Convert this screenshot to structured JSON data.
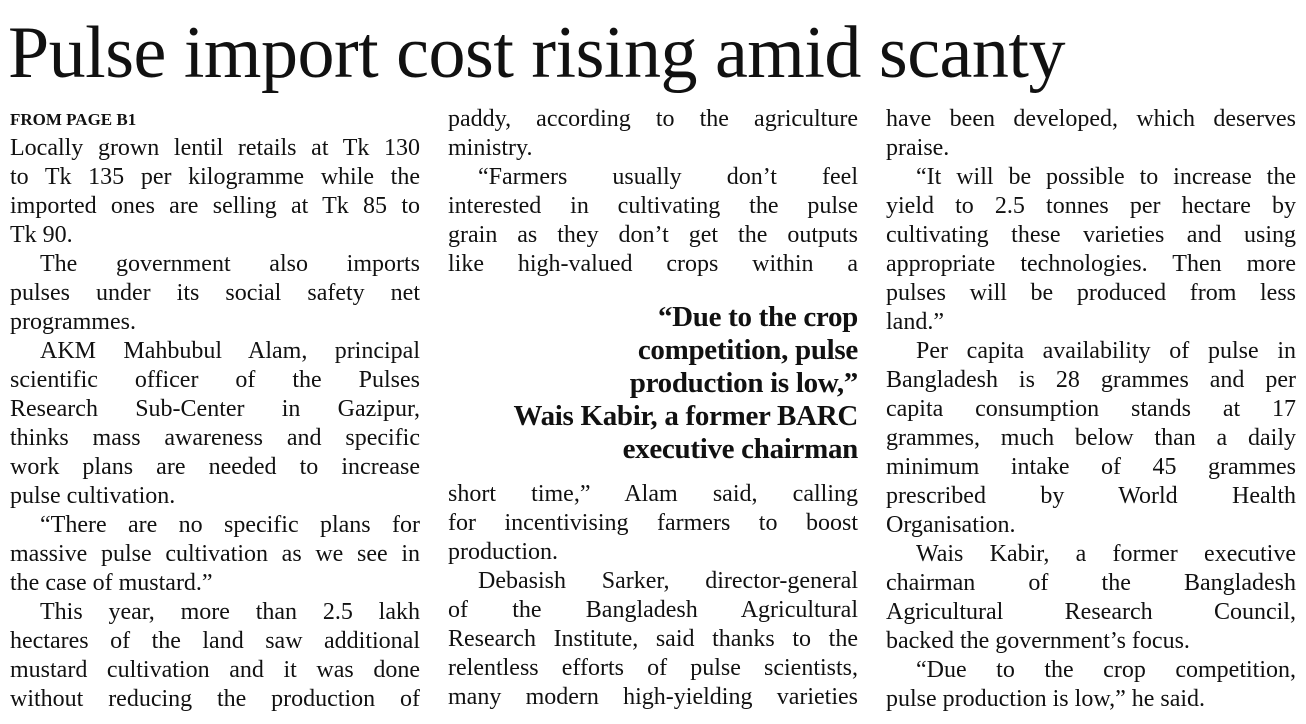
{
  "headline": "Pulse import cost rising amid scanty",
  "kicker": "FROM PAGE B1",
  "columns": [
    {
      "blocks": [
        {
          "lines": [
            "Locally grown lentil retails at Tk 130",
            "to Tk 135 per kilogramme while the",
            "imported ones are selling at Tk 85 to",
            "Tk 90."
          ],
          "indent": false
        },
        {
          "lines": [
            "The government also imports",
            "pulses under its social safety net",
            "programmes."
          ],
          "indent": true
        },
        {
          "lines": [
            "AKM Mahbubul Alam, principal",
            "scientific officer of the Pulses",
            "Research Sub-Center in Gazipur,",
            "thinks mass awareness and specific",
            "work plans are needed to increase",
            "pulse cultivation."
          ],
          "indent": true
        },
        {
          "lines": [
            "“There are no specific plans for",
            "massive pulse cultivation as we see in",
            "the case of mustard.”"
          ],
          "indent": true
        },
        {
          "lines": [
            "This year, more than 2.5 lakh",
            "hectares of the land saw additional",
            "mustard cultivation and it was done",
            "without reducing the production of"
          ],
          "indent": true,
          "continues": true
        }
      ]
    },
    {
      "blocks": [
        {
          "lines": [
            "paddy, according to the agriculture",
            "ministry."
          ],
          "indent": false
        },
        {
          "lines": [
            "“Farmers usually don’t feel",
            "interested in cultivating the pulse",
            "grain as they don’t get the outputs",
            "like high-valued crops within a"
          ],
          "indent": true,
          "continues": true
        },
        {
          "pullquote": [
            "“Due to the crop",
            "competition, pulse",
            "production is low,”",
            "Wais Kabir, a former BARC",
            "executive chairman"
          ]
        },
        {
          "lines": [
            "short time,” Alam said, calling",
            "for incentivising farmers to boost",
            "production."
          ],
          "indent": false
        },
        {
          "lines": [
            "Debasish Sarker, director-general",
            "of the Bangladesh Agricultural",
            "Research Institute, said thanks to the",
            "relentless efforts of pulse scientists,",
            "many modern high-yielding varieties"
          ],
          "indent": true,
          "continues": true
        }
      ]
    },
    {
      "blocks": [
        {
          "lines": [
            "have been developed, which deserves",
            "praise."
          ],
          "indent": false
        },
        {
          "lines": [
            "“It will be possible to increase the",
            "yield to 2.5 tonnes per hectare by",
            "cultivating these varieties and using",
            "appropriate technologies. Then more",
            "pulses will be produced from less",
            "land.”"
          ],
          "indent": true
        },
        {
          "lines": [
            "Per capita availability of pulse in",
            "Bangladesh is 28 grammes and per",
            "capita consumption stands at 17",
            "grammes, much below than a daily",
            "minimum  intake of 45 grammes",
            "prescribed by  World Health",
            "Organisation."
          ],
          "indent": true
        },
        {
          "lines": [
            "Wais Kabir, a former executive",
            "chairman of the Bangladesh",
            "Agricultural Research Council,",
            "backed the government’s focus."
          ],
          "indent": true
        },
        {
          "lines": [
            "“Due to the crop competition,",
            "pulse production is low,” he said."
          ],
          "indent": true
        }
      ]
    }
  ]
}
